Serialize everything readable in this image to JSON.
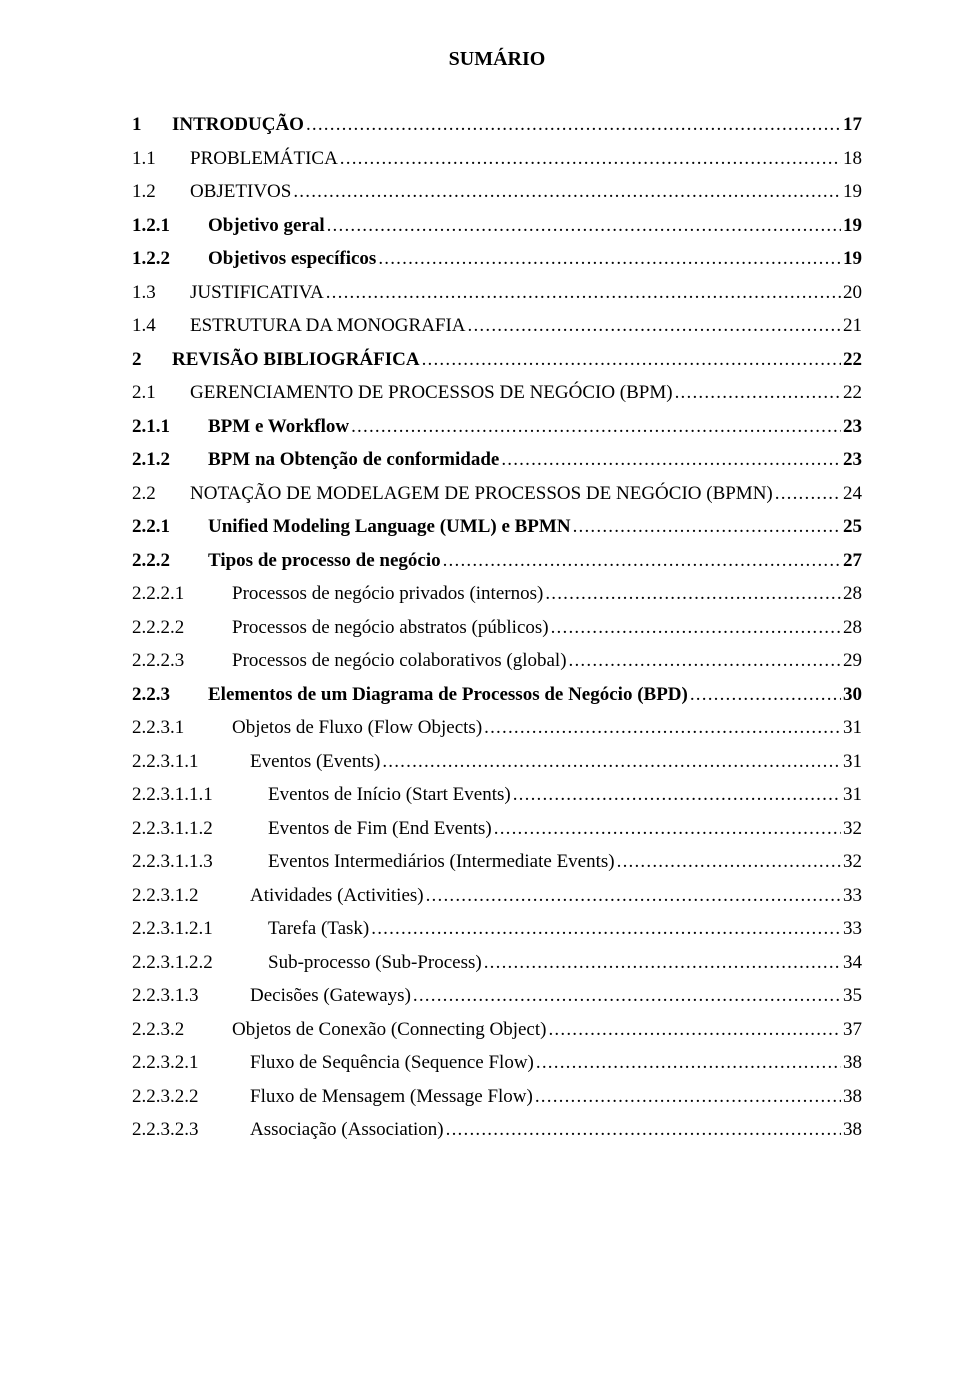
{
  "title": "SUMÁRIO",
  "entries": [
    {
      "num": "1",
      "label": "INTRODUÇÃO",
      "page": "17",
      "bold": true,
      "numw": 1
    },
    {
      "num": "1.1",
      "label": "PROBLEMÁTICA",
      "page": "18",
      "bold": false,
      "numw": 2
    },
    {
      "num": "1.2",
      "label": "OBJETIVOS",
      "page": "19",
      "bold": false,
      "numw": 2
    },
    {
      "num": "1.2.1",
      "label": "Objetivo geral",
      "page": "19",
      "bold": true,
      "numw": 3
    },
    {
      "num": "1.2.2",
      "label": "Objetivos específicos",
      "page": "19",
      "bold": true,
      "numw": 3
    },
    {
      "num": "1.3",
      "label": "JUSTIFICATIVA",
      "page": "20",
      "bold": false,
      "numw": 2
    },
    {
      "num": "1.4",
      "label": "ESTRUTURA DA MONOGRAFIA",
      "page": "21",
      "bold": false,
      "numw": 2
    },
    {
      "num": "2",
      "label": "REVISÃO BIBLIOGRÁFICA",
      "page": "22",
      "bold": true,
      "numw": 1
    },
    {
      "num": "2.1",
      "label": "GERENCIAMENTO DE PROCESSOS DE NEGÓCIO (BPM)",
      "page": "22",
      "bold": false,
      "numw": 2
    },
    {
      "num": "2.1.1",
      "label": "BPM e Workflow",
      "page": "23",
      "bold": true,
      "numw": 3
    },
    {
      "num": "2.1.2",
      "label": "BPM na Obtenção de conformidade",
      "page": "23",
      "bold": true,
      "numw": 3
    },
    {
      "num": "2.2",
      "label": "NOTAÇÃO DE MODELAGEM DE PROCESSOS DE NEGÓCIO (BPMN)",
      "page": "24",
      "bold": false,
      "numw": 2
    },
    {
      "num": "2.2.1",
      "label": "Unified Modeling Language (UML) e BPMN",
      "page": "25",
      "bold": true,
      "numw": 3
    },
    {
      "num": "2.2.2",
      "label": "Tipos de processo de negócio",
      "page": "27",
      "bold": true,
      "numw": 3
    },
    {
      "num": "2.2.2.1",
      "label": "Processos de negócio privados (internos)",
      "page": "28",
      "bold": false,
      "numw": 4
    },
    {
      "num": "2.2.2.2",
      "label": "Processos de negócio abstratos (públicos)",
      "page": "28",
      "bold": false,
      "numw": 4
    },
    {
      "num": "2.2.2.3",
      "label": "Processos de negócio colaborativos (global)",
      "page": "29",
      "bold": false,
      "numw": 4
    },
    {
      "num": "2.2.3",
      "label": "Elementos de um Diagrama de Processos de Negócio (BPD)",
      "page": "30",
      "bold": true,
      "numw": 3
    },
    {
      "num": "2.2.3.1",
      "label": "Objetos de Fluxo (Flow Objects)",
      "page": "31",
      "bold": false,
      "numw": 4
    },
    {
      "num": "2.2.3.1.1",
      "label": "Eventos (Events)",
      "page": "31",
      "bold": false,
      "numw": 5
    },
    {
      "num": "2.2.3.1.1.1",
      "label": "Eventos de Início (Start Events)",
      "page": "31",
      "bold": false,
      "numw": 6
    },
    {
      "num": "2.2.3.1.1.2",
      "label": "Eventos de Fim (End Events)",
      "page": "32",
      "bold": false,
      "numw": 6
    },
    {
      "num": "2.2.3.1.1.3",
      "label": "Eventos Intermediários (Intermediate Events)",
      "page": "32",
      "bold": false,
      "numw": 6
    },
    {
      "num": "2.2.3.1.2",
      "label": "Atividades (Activities)",
      "page": "33",
      "bold": false,
      "numw": 5
    },
    {
      "num": "2.2.3.1.2.1",
      "label": "Tarefa (Task)",
      "page": "33",
      "bold": false,
      "numw": 6
    },
    {
      "num": "2.2.3.1.2.2",
      "label": "Sub-processo (Sub-Process)",
      "page": "34",
      "bold": false,
      "numw": 6
    },
    {
      "num": "2.2.3.1.3",
      "label": "Decisões (Gateways)",
      "page": "35",
      "bold": false,
      "numw": 5
    },
    {
      "num": "2.2.3.2",
      "label": "Objetos de Conexão (Connecting Object)",
      "page": "37",
      "bold": false,
      "numw": 4
    },
    {
      "num": "2.2.3.2.1",
      "label": "Fluxo de Sequência (Sequence Flow)",
      "page": "38",
      "bold": false,
      "numw": 5
    },
    {
      "num": "2.2.3.2.2",
      "label": "Fluxo de Mensagem (Message Flow)",
      "page": "38",
      "bold": false,
      "numw": 5
    },
    {
      "num": "2.2.3.2.3",
      "label": "Associação (Association)",
      "page": "38",
      "bold": false,
      "numw": 5
    }
  ]
}
